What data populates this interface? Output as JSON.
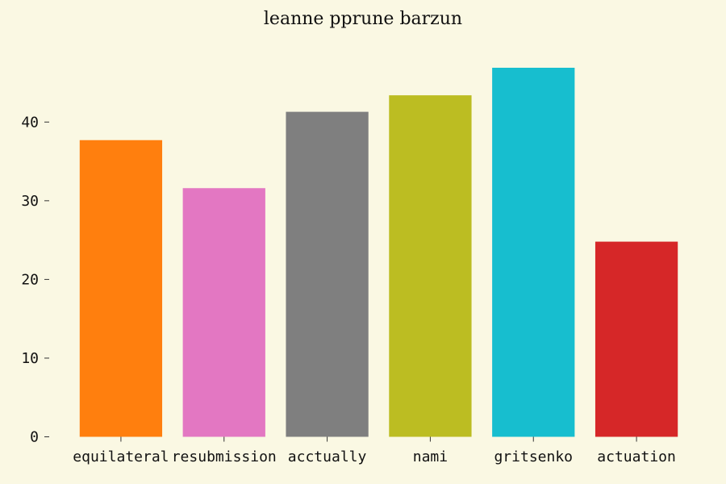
{
  "chart_data": {
    "type": "bar",
    "title": "leanne pprune barzun",
    "xlabel": "",
    "ylabel": "",
    "categories": [
      "equilateral",
      "resubmission",
      "acctually",
      "nami",
      "gritsenko",
      "actuation"
    ],
    "values": [
      37.7,
      31.6,
      41.3,
      43.4,
      46.9,
      24.8
    ],
    "colors": [
      "#ff7f0e",
      "#e377c2",
      "#7f7f7f",
      "#bcbd22",
      "#17becf",
      "#d62728"
    ],
    "ylim": [
      0,
      49
    ],
    "yticks": [
      0,
      10,
      20,
      30,
      40
    ],
    "grid": false,
    "legend": "none"
  }
}
